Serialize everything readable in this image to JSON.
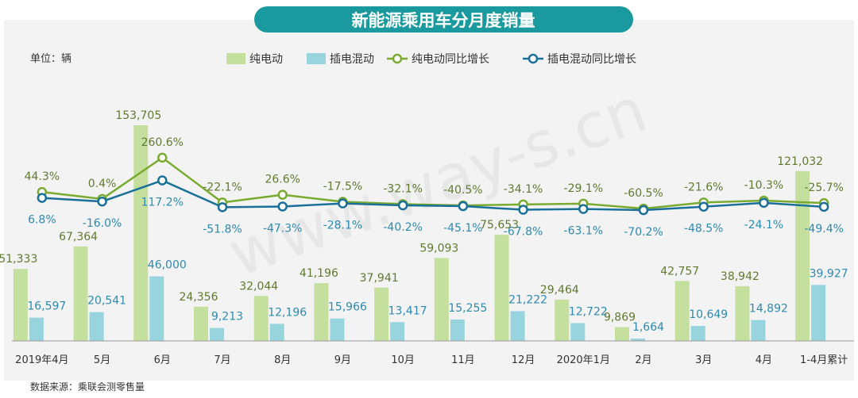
{
  "title": "新能源乘用车分月度销量",
  "unit_label": "单位：辆",
  "source": "数据来源：乘联会测零售量",
  "watermark": "www.way-s.cn",
  "colors": {
    "title_bg": "#1a9a9e",
    "bev_bar": "#c5df9f",
    "phev_bar": "#98d4de",
    "bev_line": "#7aaa30",
    "phev_line": "#1a7098",
    "bev_label": "#5f7a30",
    "phev_label": "#2e8ab0",
    "panel_bg": "#f3f3f3"
  },
  "chart_data": {
    "type": "bar+line",
    "categories": [
      "2019年4月",
      "5月",
      "6月",
      "7月",
      "8月",
      "9月",
      "10月",
      "11月",
      "12月",
      "2020年1月",
      "2月",
      "3月",
      "4月",
      "1-4月累计"
    ],
    "bar_series": [
      {
        "name": "纯电动",
        "values": [
          51333,
          67364,
          153705,
          24356,
          32044,
          41196,
          37941,
          59093,
          75653,
          29464,
          9869,
          42757,
          38942,
          121032
        ],
        "labels": [
          "51,333",
          "67,364",
          "153,705",
          "24,356",
          "32,044",
          "41,196",
          "37,941",
          "59,093",
          "75,653",
          "29,464",
          "9,869",
          "42,757",
          "38,942",
          "121,032"
        ]
      },
      {
        "name": "插电混动",
        "values": [
          16597,
          20541,
          46000,
          9213,
          12196,
          15966,
          13417,
          15255,
          21222,
          12722,
          1664,
          10649,
          14892,
          39927
        ],
        "labels": [
          "16,597",
          "20,541",
          "46,000",
          "9,213",
          "12,196",
          "15,966",
          "13,417",
          "15,255",
          "21,222",
          "12,722",
          "1,664",
          "10,649",
          "14,892",
          "39,927"
        ]
      }
    ],
    "line_series": [
      {
        "name": "纯电动同比增长",
        "values": [
          44.3,
          0.4,
          260.6,
          -22.1,
          26.6,
          -17.5,
          -32.1,
          -40.5,
          -34.1,
          -29.1,
          -60.5,
          -21.6,
          -10.3,
          -25.7
        ],
        "labels": [
          "44.3%",
          "0.4%",
          "260.6%",
          "-22.1%",
          "26.6%",
          "-17.5%",
          "-32.1%",
          "-40.5%",
          "-34.1%",
          "-29.1%",
          "-60.5%",
          "-21.6%",
          "-10.3%",
          "-25.7%"
        ]
      },
      {
        "name": "插电混动同比增长",
        "values": [
          6.8,
          -16.0,
          117.2,
          -51.8,
          -47.3,
          -28.1,
          -40.2,
          -45.1,
          -67.8,
          -63.1,
          -70.2,
          -48.5,
          -24.1,
          -49.4
        ],
        "labels": [
          "6.8%",
          "-16.0%",
          "117.2%",
          "-51.8%",
          "-47.3%",
          "-28.1%",
          "-40.2%",
          "-45.1%",
          "-67.8%",
          "-63.1%",
          "-70.2%",
          "-48.5%",
          "-24.1%",
          "-49.4%"
        ]
      }
    ],
    "legend_position": "top"
  }
}
